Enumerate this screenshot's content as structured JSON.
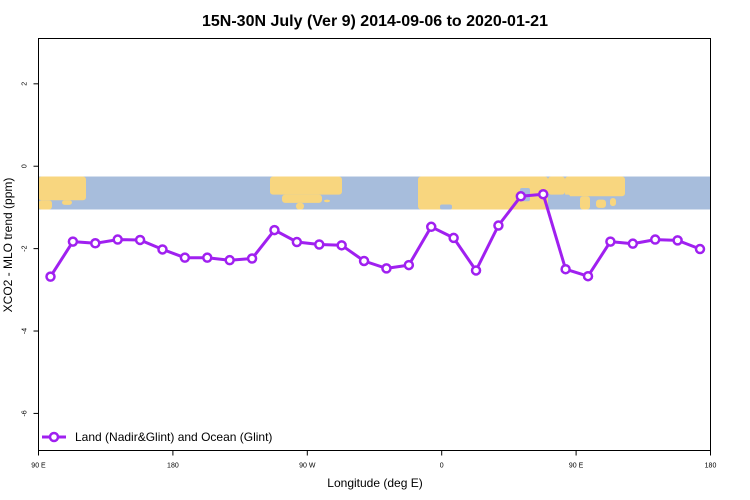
{
  "chart_data": {
    "type": "line",
    "title": "15N-30N July (Ver 9)   2014-09-06 to 2020-01-21",
    "xlabel": "Longitude (deg E)",
    "ylabel": "XCO2 - MLO trend (ppm)",
    "x_tick_labels": [
      "90 E",
      "180",
      "90 W",
      "0",
      "90 E",
      "180"
    ],
    "y_ticks": [
      2,
      0,
      -2,
      -4,
      -6
    ],
    "y_tick_labels": [
      "2",
      "0",
      "-2",
      "-4",
      "-6"
    ],
    "ylim": [
      -6.9,
      3.1
    ],
    "grid": false,
    "legend_position": "bottom-left",
    "series": [
      {
        "name": "Land (Nadir&Glint) and Ocean (Glint)",
        "color": "#a020f0",
        "marker": "open-circle",
        "values": [
          -2.68,
          -1.83,
          -1.87,
          -1.78,
          -1.79,
          -2.02,
          -2.22,
          -2.22,
          -2.28,
          -2.24,
          -1.55,
          -1.84,
          -1.9,
          -1.92,
          -2.3,
          -2.48,
          -2.4,
          -1.47,
          -1.74,
          -2.53,
          -1.44,
          -0.73,
          -0.68,
          -2.5,
          -2.67,
          -1.83,
          -1.88,
          -1.78,
          -1.8,
          -2.01
        ]
      }
    ],
    "map_strip": {
      "y_range": [
        -0.25,
        -1.05
      ],
      "ocean_color": "#a7bddc",
      "land_color": "#f8d67f"
    }
  }
}
